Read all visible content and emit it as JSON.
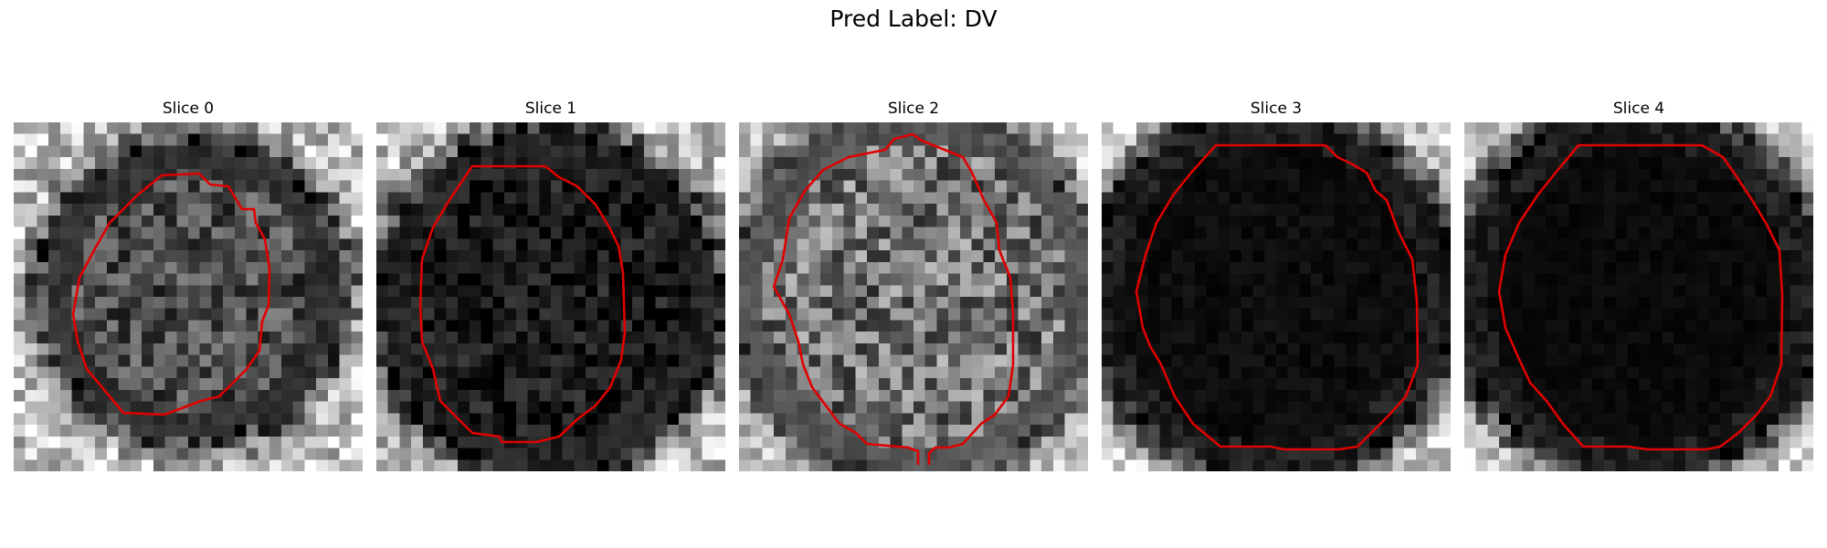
{
  "figure": {
    "title": "Pred Label: DV"
  },
  "panels": [
    {
      "title": "Slice 0"
    },
    {
      "title": "Slice 1"
    },
    {
      "title": "Slice 2"
    },
    {
      "title": "Slice 3"
    },
    {
      "title": "Slice 4"
    }
  ],
  "colors": {
    "contour": "#e00000",
    "colormap": "gray"
  }
}
